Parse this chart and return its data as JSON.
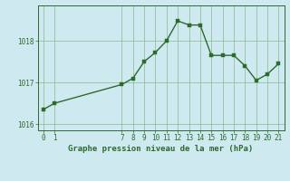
{
  "title": "Graphe pression niveau de la mer (hPa)",
  "bg_color": "#cfe9f0",
  "line_color": "#2d6a2d",
  "marker_color": "#2d6a2d",
  "grid_color": "#88bb88",
  "x_data": [
    0,
    1,
    7,
    8,
    9,
    10,
    11,
    12,
    13,
    14,
    15,
    16,
    17,
    18,
    19,
    20,
    21
  ],
  "y_data": [
    1016.35,
    1016.5,
    1016.95,
    1017.1,
    1017.5,
    1017.72,
    1018.0,
    1018.48,
    1018.38,
    1018.38,
    1017.65,
    1017.65,
    1017.65,
    1017.4,
    1017.05,
    1017.2,
    1017.45
  ],
  "ylim": [
    1015.85,
    1018.85
  ],
  "yticks": [
    1016,
    1017,
    1018
  ],
  "xlim": [
    -0.5,
    21.5
  ],
  "xticks": [
    0,
    1,
    7,
    8,
    9,
    10,
    11,
    12,
    13,
    14,
    15,
    16,
    17,
    18,
    19,
    20,
    21
  ],
  "tick_fontsize": 5.5,
  "title_fontsize": 6.5,
  "linewidth": 1.0,
  "markersize": 2.2
}
